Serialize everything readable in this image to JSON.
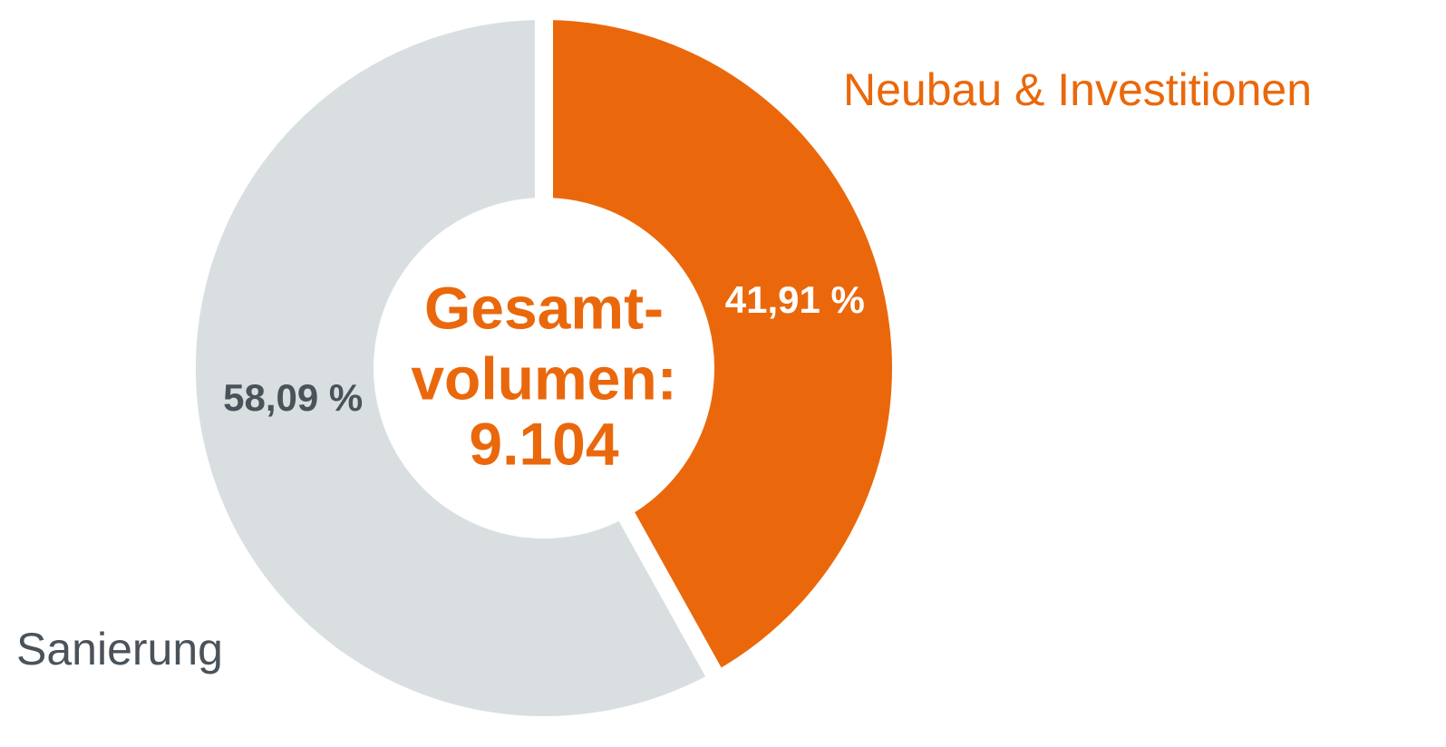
{
  "chart_data": {
    "type": "donut",
    "categories": [
      "Neubau & Investitionen",
      "Sanierung"
    ],
    "values": [
      41.91,
      58.09
    ],
    "value_labels": [
      "41,91 %",
      "58,09 %"
    ],
    "colors": [
      "#ea680b",
      "#d9dfe0"
    ],
    "center_text": [
      "Gesamt-",
      "volumen:",
      "9.104"
    ]
  }
}
